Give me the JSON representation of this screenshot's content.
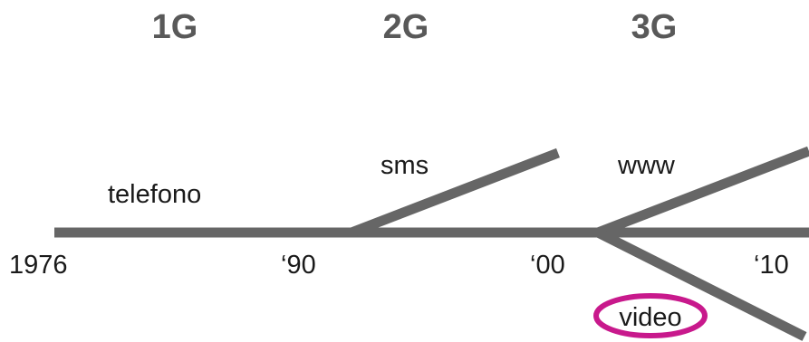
{
  "generations": [
    {
      "label": "1G"
    },
    {
      "label": "2G"
    },
    {
      "label": "3G"
    }
  ],
  "years": [
    {
      "label": "1976"
    },
    {
      "label": "‘90"
    },
    {
      "label": "‘00"
    },
    {
      "label": "‘10"
    }
  ],
  "features": {
    "telefono": "telefono",
    "sms": "sms",
    "www": "www",
    "video": "video"
  },
  "colors": {
    "line": "#666666",
    "generation_text": "#595959",
    "text": "#1a1a1a",
    "highlight": "#c8198c",
    "background": "#ffffff"
  }
}
